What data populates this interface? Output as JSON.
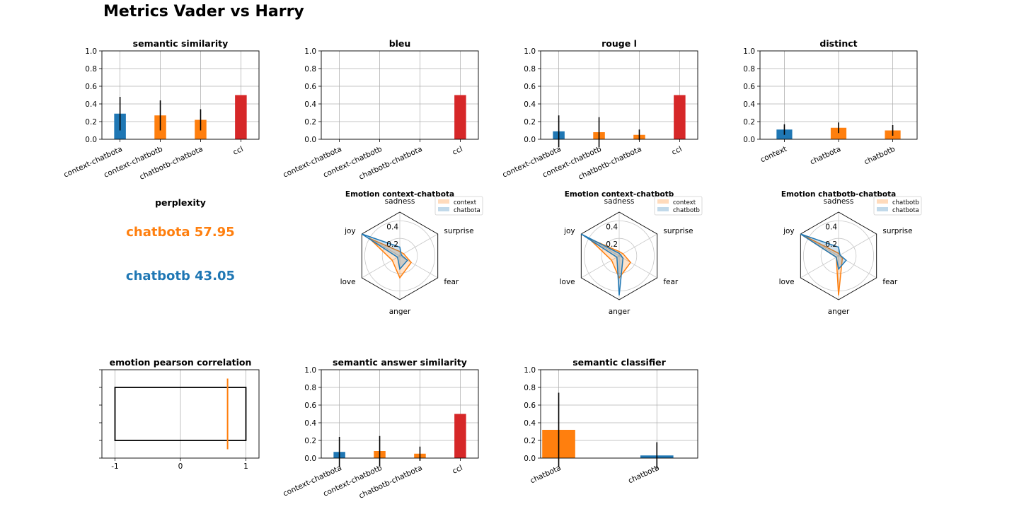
{
  "title": "Metrics Vader vs Harry",
  "colors": {
    "blue": "#1f77b4",
    "orange": "#ff7f0e",
    "red": "#d62728"
  },
  "perplexity": {
    "title": "perplexity",
    "a_text": "chatbota 57.95",
    "b_text": "chatbotb 43.05"
  },
  "chart_data": [
    {
      "id": "semantic-similarity",
      "type": "bar",
      "title": "semantic similarity",
      "categories": [
        "context-chatbota",
        "context-chatbotb",
        "chatbotb-chatbota",
        "ccl"
      ],
      "values": [
        0.29,
        0.27,
        0.22,
        0.5
      ],
      "errors": [
        0.19,
        0.17,
        0.12,
        0
      ],
      "colors": [
        "blue",
        "orange",
        "orange",
        "red"
      ],
      "ylim": [
        0,
        1
      ],
      "yticks": [
        "0.0",
        "0.2",
        "0.4",
        "0.6",
        "0.8",
        "1.0"
      ],
      "grid": true
    },
    {
      "id": "bleu",
      "type": "bar",
      "title": "bleu",
      "categories": [
        "context-chatbota",
        "context-chatbotb",
        "chatbotb-chatbota",
        "ccl"
      ],
      "values": [
        0,
        0,
        0,
        0.5
      ],
      "errors": [
        0,
        0,
        0,
        0
      ],
      "colors": [
        "blue",
        "orange",
        "orange",
        "red"
      ],
      "ylim": [
        0,
        1
      ],
      "yticks": [
        "0.0",
        "0.2",
        "0.4",
        "0.6",
        "0.8",
        "1.0"
      ],
      "grid": true
    },
    {
      "id": "rouge-l",
      "type": "bar",
      "title": "rouge l",
      "categories": [
        "context-chatbota",
        "context-chatbotb",
        "chatbotb-chatbota",
        "ccl"
      ],
      "values": [
        0.09,
        0.08,
        0.05,
        0.5
      ],
      "errors": [
        0.18,
        0.17,
        0.06,
        0
      ],
      "colors": [
        "blue",
        "orange",
        "orange",
        "red"
      ],
      "ylim": [
        0,
        1
      ],
      "yticks": [
        "0.0",
        "0.2",
        "0.4",
        "0.6",
        "0.8",
        "1.0"
      ],
      "grid": true
    },
    {
      "id": "distinct",
      "type": "bar",
      "title": "distinct",
      "categories": [
        "context",
        "chatbota",
        "chatbotb"
      ],
      "values": [
        0.11,
        0.13,
        0.1
      ],
      "errors": [
        0.06,
        0.06,
        0.06
      ],
      "colors": [
        "blue",
        "orange",
        "orange"
      ],
      "ylim": [
        0,
        1
      ],
      "yticks": [
        "0.0",
        "0.2",
        "0.4",
        "0.6",
        "0.8",
        "1.0"
      ],
      "grid": true
    },
    {
      "id": "emotion-context-chatbota",
      "type": "radar",
      "title": "Emotion context-chatbota",
      "axes": [
        "sadness",
        "surprise",
        "fear",
        "anger",
        "love",
        "joy"
      ],
      "rticks": [
        "0.2",
        "0.4"
      ],
      "rmax": 0.5,
      "series": [
        {
          "name": "context",
          "color": "orange",
          "values": [
            0.05,
            0.05,
            0.15,
            0.25,
            0.1,
            0.4
          ]
        },
        {
          "name": "chatbota",
          "color": "blue",
          "values": [
            0.1,
            0.02,
            0.1,
            0.15,
            0.03,
            0.5
          ]
        }
      ]
    },
    {
      "id": "emotion-context-chatbotb",
      "type": "radar",
      "title": "Emotion context-chatbotb",
      "axes": [
        "sadness",
        "surprise",
        "fear",
        "anger",
        "love",
        "joy"
      ],
      "rticks": [
        "0.2",
        "0.4"
      ],
      "rmax": 0.5,
      "series": [
        {
          "name": "context",
          "color": "orange",
          "values": [
            0.05,
            0.05,
            0.15,
            0.25,
            0.1,
            0.4
          ]
        },
        {
          "name": "chatbotb",
          "color": "blue",
          "values": [
            0.03,
            0.02,
            0.05,
            0.45,
            0.03,
            0.5
          ]
        }
      ]
    },
    {
      "id": "emotion-chatbotb-chatbota",
      "type": "radar",
      "title": "Emotion chatbotb-chatbota",
      "axes": [
        "sadness",
        "surprise",
        "fear",
        "anger",
        "love",
        "joy"
      ],
      "rticks": [
        "0.2",
        "0.4"
      ],
      "rmax": 0.5,
      "series": [
        {
          "name": "chatbotb",
          "color": "orange",
          "values": [
            0.03,
            0.02,
            0.05,
            0.45,
            0.03,
            0.5
          ]
        },
        {
          "name": "chatbota",
          "color": "blue",
          "values": [
            0.1,
            0.02,
            0.1,
            0.15,
            0.03,
            0.5
          ]
        }
      ]
    },
    {
      "id": "emotion-pearson-correlation",
      "type": "box",
      "title": "emotion pearson correlation",
      "xlim": [
        -1.2,
        1.2
      ],
      "xticks": [
        "-1",
        "0",
        "1"
      ],
      "box": {
        "x0": -1,
        "x1": 1,
        "y0": 0.2,
        "y1": 0.8
      },
      "marker": {
        "x": 0.72,
        "y0": 0.1,
        "y1": 0.9,
        "color": "orange"
      }
    },
    {
      "id": "semantic-answer-similarity",
      "type": "bar",
      "title": "semantic answer similarity",
      "categories": [
        "context-chatbota",
        "context-chatbotb",
        "chatbotb-chatbota",
        "ccl"
      ],
      "values": [
        0.07,
        0.08,
        0.05,
        0.5
      ],
      "errors": [
        0.17,
        0.17,
        0.08,
        0
      ],
      "colors": [
        "blue",
        "orange",
        "orange",
        "red"
      ],
      "ylim": [
        0,
        1
      ],
      "yticks": [
        "0.0",
        "0.2",
        "0.4",
        "0.6",
        "0.8",
        "1.0"
      ],
      "grid": true
    },
    {
      "id": "semantic-classifier",
      "type": "bar",
      "title": "semantic classifier",
      "categories": [
        "chatbota",
        "chatbotb"
      ],
      "values": [
        0.32,
        0.03
      ],
      "errors": [
        0.42,
        0.15
      ],
      "colors": [
        "orange",
        "blue"
      ],
      "ylim": [
        0,
        1
      ],
      "yticks": [
        "0.0",
        "0.2",
        "0.4",
        "0.6",
        "0.8",
        "1.0"
      ],
      "grid": true
    }
  ]
}
